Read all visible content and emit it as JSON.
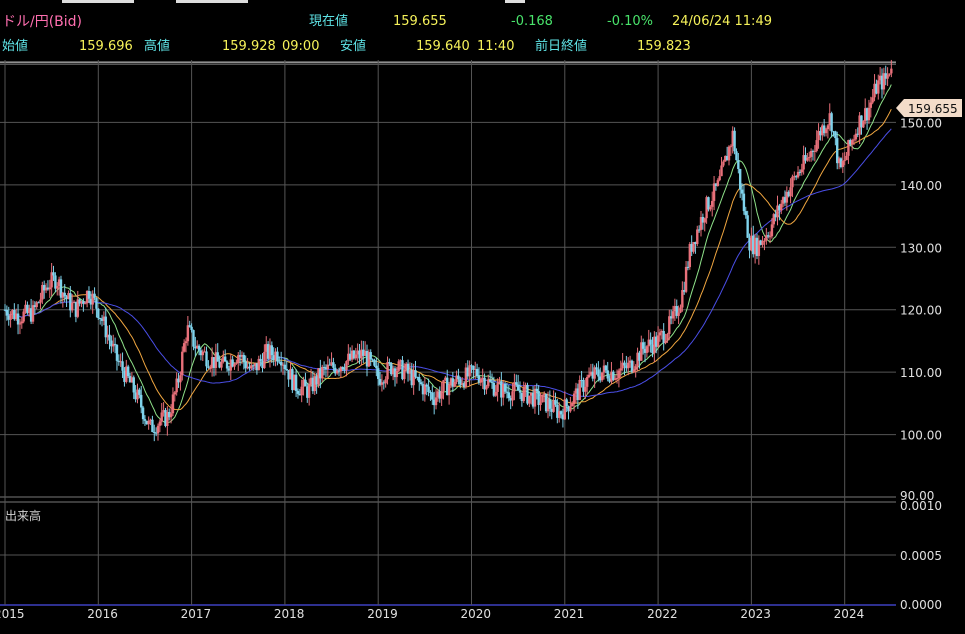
{
  "header": {
    "symbol": "ドル/円(Bid)",
    "current_label": "現在値",
    "current_value": "159.655",
    "change": "-0.168",
    "change_pct": "-0.10%",
    "datetime": "24/06/24  11:49",
    "open_label": "始値",
    "open_value": "159.696",
    "high_label": "高値",
    "high_value": "159.928",
    "high_time": "09:00",
    "low_label": "安値",
    "low_value": "159.640",
    "low_time": "11:40",
    "prev_close_label": "前日終値",
    "prev_close_value": "159.823"
  },
  "volume_panel": {
    "label": "出来高"
  },
  "price_tag": "159.655",
  "chart_data": [
    {
      "type": "candlestick",
      "title": "ドル/円(Bid)",
      "x_ticks": [
        "2015",
        "2016",
        "2017",
        "2018",
        "2019",
        "2020",
        "2021",
        "2022",
        "2023",
        "2024"
      ],
      "y_ticks": [
        "90.00",
        "100.00",
        "110.00",
        "120.00",
        "130.00",
        "140.00",
        "150.00"
      ],
      "ylim": [
        90,
        160
      ],
      "xlim": [
        2015.0,
        2024.55
      ],
      "grid": true,
      "current_price": 159.655,
      "colors": {
        "up": "#e8707a",
        "down": "#7fd3ec",
        "ma_short": "#8fe28a",
        "ma_mid": "#f0a640",
        "ma_long": "#4a4ee6"
      },
      "series": [
        {
          "name": "price",
          "points": [
            [
              2015.0,
              120.0
            ],
            [
              2015.15,
              119.0
            ],
            [
              2015.3,
              119.5
            ],
            [
              2015.45,
              124.0
            ],
            [
              2015.55,
              125.0
            ],
            [
              2015.65,
              122.0
            ],
            [
              2015.75,
              120.0
            ],
            [
              2015.9,
              123.0
            ],
            [
              2016.0,
              120.0
            ],
            [
              2016.1,
              116.0
            ],
            [
              2016.2,
              112.0
            ],
            [
              2016.35,
              108.0
            ],
            [
              2016.45,
              105.0
            ],
            [
              2016.55,
              101.0
            ],
            [
              2016.65,
              102.0
            ],
            [
              2016.75,
              103.0
            ],
            [
              2016.85,
              108.0
            ],
            [
              2016.95,
              117.0
            ],
            [
              2017.05,
              114.0
            ],
            [
              2017.2,
              112.0
            ],
            [
              2017.35,
              111.0
            ],
            [
              2017.5,
              113.0
            ],
            [
              2017.65,
              110.0
            ],
            [
              2017.8,
              113.0
            ],
            [
              2017.95,
              113.0
            ],
            [
              2018.1,
              108.0
            ],
            [
              2018.25,
              107.0
            ],
            [
              2018.4,
              110.0
            ],
            [
              2018.55,
              111.0
            ],
            [
              2018.7,
              112.0
            ],
            [
              2018.85,
              113.0
            ],
            [
              2019.0,
              109.0
            ],
            [
              2019.15,
              111.0
            ],
            [
              2019.3,
              110.0
            ],
            [
              2019.45,
              108.0
            ],
            [
              2019.6,
              106.0
            ],
            [
              2019.75,
              108.0
            ],
            [
              2019.9,
              109.0
            ],
            [
              2020.05,
              110.0
            ],
            [
              2020.2,
              108.0
            ],
            [
              2020.35,
              107.0
            ],
            [
              2020.5,
              107.0
            ],
            [
              2020.65,
              106.0
            ],
            [
              2020.8,
              105.0
            ],
            [
              2020.95,
              103.5
            ],
            [
              2021.1,
              106.0
            ],
            [
              2021.25,
              109.0
            ],
            [
              2021.4,
              110.0
            ],
            [
              2021.55,
              110.0
            ],
            [
              2021.7,
              111.0
            ],
            [
              2021.85,
              114.0
            ],
            [
              2022.0,
              115.0
            ],
            [
              2022.15,
              118.0
            ],
            [
              2022.25,
              122.0
            ],
            [
              2022.35,
              130.0
            ],
            [
              2022.5,
              136.0
            ],
            [
              2022.65,
              140.0
            ],
            [
              2022.8,
              148.0
            ],
            [
              2022.9,
              138.0
            ],
            [
              2022.98,
              131.0
            ],
            [
              2023.05,
              130.0
            ],
            [
              2023.2,
              133.0
            ],
            [
              2023.35,
              138.0
            ],
            [
              2023.5,
              142.0
            ],
            [
              2023.6,
              144.0
            ],
            [
              2023.75,
              149.0
            ],
            [
              2023.85,
              151.0
            ],
            [
              2023.95,
              142.0
            ],
            [
              2024.05,
              146.0
            ],
            [
              2024.15,
              150.0
            ],
            [
              2024.25,
              152.0
            ],
            [
              2024.35,
              156.0
            ],
            [
              2024.45,
              157.0
            ],
            [
              2024.5,
              159.655
            ]
          ]
        }
      ],
      "volume_panel": {
        "label": "出来高",
        "y_ticks": [
          "0.0010",
          "0.0005",
          "0.0000"
        ]
      }
    }
  ]
}
